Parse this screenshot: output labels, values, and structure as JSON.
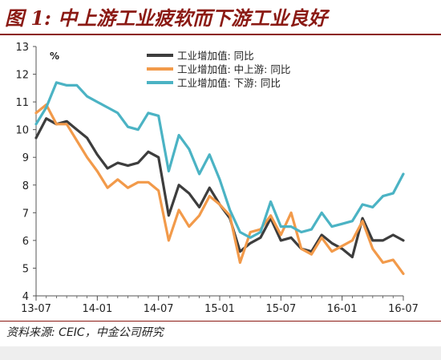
{
  "title": "图 1:  中上游工业疲软而下游工业良好",
  "source": "资料来源:  CEIC，中金公司研究",
  "colors": {
    "title": "#8b1a14",
    "series": [
      "#3d3d3d",
      "#f29a4a",
      "#4bb3c4"
    ]
  },
  "chart_data": {
    "type": "line",
    "unit_label": "%",
    "ylim": [
      4,
      13
    ],
    "yticks": [
      4,
      5,
      6,
      7,
      8,
      9,
      10,
      11,
      12,
      13
    ],
    "xlim": [
      "2013-07",
      "2016-07"
    ],
    "xticks": [
      "13-07",
      "14-01",
      "14-07",
      "15-01",
      "15-07",
      "16-01",
      "16-07"
    ],
    "grid": false,
    "legend_position": "top-center",
    "series": [
      {
        "name": "工业增加值: 同比",
        "color": "#3d3d3d",
        "points": [
          [
            "2013-07",
            9.7
          ],
          [
            "2013-08",
            10.4
          ],
          [
            "2013-09",
            10.2
          ],
          [
            "2013-10",
            10.3
          ],
          [
            "2013-11",
            10.0
          ],
          [
            "2013-12",
            9.7
          ],
          [
            "2014-01",
            9.1
          ],
          [
            "2014-02",
            8.6
          ],
          [
            "2014-03",
            8.8
          ],
          [
            "2014-04",
            8.7
          ],
          [
            "2014-05",
            8.8
          ],
          [
            "2014-06",
            9.2
          ],
          [
            "2014-07",
            9.0
          ],
          [
            "2014-08",
            6.9
          ],
          [
            "2014-09",
            8.0
          ],
          [
            "2014-10",
            7.7
          ],
          [
            "2014-11",
            7.2
          ],
          [
            "2014-12",
            7.9
          ],
          [
            "2015-01",
            7.3
          ],
          [
            "2015-02",
            6.8
          ],
          [
            "2015-03",
            5.6
          ],
          [
            "2015-04",
            5.9
          ],
          [
            "2015-05",
            6.1
          ],
          [
            "2015-06",
            6.8
          ],
          [
            "2015-07",
            6.0
          ],
          [
            "2015-08",
            6.1
          ],
          [
            "2015-09",
            5.7
          ],
          [
            "2015-10",
            5.6
          ],
          [
            "2015-11",
            6.2
          ],
          [
            "2015-12",
            5.9
          ],
          [
            "2016-01",
            5.7
          ],
          [
            "2016-02",
            5.4
          ],
          [
            "2016-03",
            6.8
          ],
          [
            "2016-04",
            6.0
          ],
          [
            "2016-05",
            6.0
          ],
          [
            "2016-06",
            6.2
          ],
          [
            "2016-07",
            6.0
          ]
        ]
      },
      {
        "name": "工业增加值: 中上游: 同比",
        "color": "#f29a4a",
        "points": [
          [
            "2013-07",
            10.6
          ],
          [
            "2013-08",
            10.9
          ],
          [
            "2013-09",
            10.2
          ],
          [
            "2013-10",
            10.2
          ],
          [
            "2013-11",
            9.6
          ],
          [
            "2013-12",
            9.0
          ],
          [
            "2014-01",
            8.5
          ],
          [
            "2014-02",
            7.9
          ],
          [
            "2014-03",
            8.2
          ],
          [
            "2014-04",
            7.9
          ],
          [
            "2014-05",
            8.1
          ],
          [
            "2014-06",
            8.1
          ],
          [
            "2014-07",
            7.8
          ],
          [
            "2014-08",
            6.0
          ],
          [
            "2014-09",
            7.1
          ],
          [
            "2014-10",
            6.5
          ],
          [
            "2014-11",
            6.9
          ],
          [
            "2014-12",
            7.6
          ],
          [
            "2015-01",
            7.3
          ],
          [
            "2015-02",
            6.9
          ],
          [
            "2015-03",
            5.2
          ],
          [
            "2015-04",
            6.3
          ],
          [
            "2015-05",
            6.4
          ],
          [
            "2015-06",
            6.9
          ],
          [
            "2015-07",
            6.2
          ],
          [
            "2015-08",
            7.0
          ],
          [
            "2015-09",
            5.7
          ],
          [
            "2015-10",
            5.5
          ],
          [
            "2015-11",
            6.1
          ],
          [
            "2015-12",
            5.6
          ],
          [
            "2016-01",
            5.8
          ],
          [
            "2016-02",
            6.0
          ],
          [
            "2016-03",
            6.7
          ],
          [
            "2016-04",
            5.7
          ],
          [
            "2016-05",
            5.2
          ],
          [
            "2016-06",
            5.3
          ],
          [
            "2016-07",
            4.8
          ]
        ]
      },
      {
        "name": "工业增加值: 下游: 同比",
        "color": "#4bb3c4",
        "points": [
          [
            "2013-07",
            10.2
          ],
          [
            "2013-08",
            10.8
          ],
          [
            "2013-09",
            11.7
          ],
          [
            "2013-10",
            11.6
          ],
          [
            "2013-11",
            11.6
          ],
          [
            "2013-12",
            11.2
          ],
          [
            "2014-01",
            11.0
          ],
          [
            "2014-02",
            10.8
          ],
          [
            "2014-03",
            10.6
          ],
          [
            "2014-04",
            10.1
          ],
          [
            "2014-05",
            10.0
          ],
          [
            "2014-06",
            10.6
          ],
          [
            "2014-07",
            10.5
          ],
          [
            "2014-08",
            8.5
          ],
          [
            "2014-09",
            9.8
          ],
          [
            "2014-10",
            9.3
          ],
          [
            "2014-11",
            8.4
          ],
          [
            "2014-12",
            9.1
          ],
          [
            "2015-01",
            8.2
          ],
          [
            "2015-02",
            7.1
          ],
          [
            "2015-03",
            6.3
          ],
          [
            "2015-04",
            6.1
          ],
          [
            "2015-05",
            6.3
          ],
          [
            "2015-06",
            7.4
          ],
          [
            "2015-07",
            6.5
          ],
          [
            "2015-08",
            6.5
          ],
          [
            "2015-09",
            6.3
          ],
          [
            "2015-10",
            6.4
          ],
          [
            "2015-11",
            7.0
          ],
          [
            "2015-12",
            6.5
          ],
          [
            "2016-01",
            6.6
          ],
          [
            "2016-02",
            6.7
          ],
          [
            "2016-03",
            7.3
          ],
          [
            "2016-04",
            7.2
          ],
          [
            "2016-05",
            7.6
          ],
          [
            "2016-06",
            7.7
          ],
          [
            "2016-07",
            8.4
          ]
        ]
      }
    ]
  }
}
